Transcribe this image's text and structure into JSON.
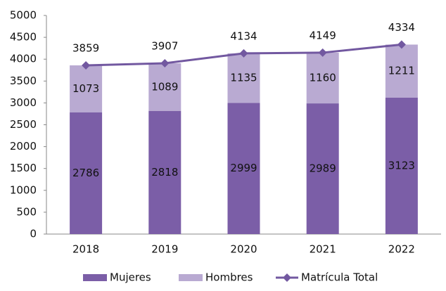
{
  "chart_data": {
    "type": "bar",
    "stacked": true,
    "categories": [
      "2018",
      "2019",
      "2020",
      "2021",
      "2022"
    ],
    "series": [
      {
        "name": "Mujeres",
        "type": "bar",
        "color": "#7b5ea7",
        "values": [
          2786,
          2818,
          2999,
          2989,
          3123
        ]
      },
      {
        "name": "Hombres",
        "type": "bar",
        "color": "#b9aad2",
        "values": [
          1073,
          1089,
          1135,
          1160,
          1211
        ]
      },
      {
        "name": "Matrícula Total",
        "type": "line",
        "color": "#7258a0",
        "values": [
          3859,
          3907,
          4134,
          4149,
          4334
        ]
      }
    ],
    "ylim": [
      0,
      5000
    ],
    "yticks": [
      0,
      500,
      1000,
      1500,
      2000,
      2500,
      3000,
      3500,
      4000,
      4500,
      5000
    ],
    "grid": false,
    "legend": "bottom"
  }
}
